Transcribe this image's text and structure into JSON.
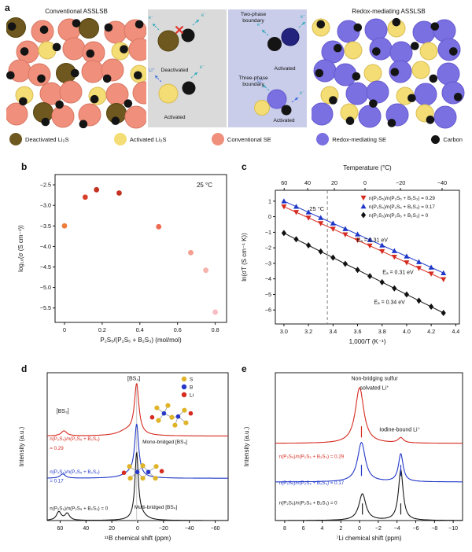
{
  "panels": {
    "a": {
      "label": "a",
      "left_title": "Conventional ASSLSB",
      "right_title": "Redox-mediating ASSLSB",
      "two_phase_label": "Two-phase boundary",
      "three_phase_label": "Three-phase boundary",
      "captions": {
        "deactivated": "Deactivated",
        "activated_grey": "Activated",
        "activated_blue_top": "Activated",
        "activated_blue_bottom": "Activated"
      },
      "micro_labels": {
        "electron": "e⁻",
        "lithium": "Li⁺"
      },
      "colors": {
        "S": "#f0907c",
        "S_stroke": "#d87864",
        "B": "#6e581f",
        "B_stroke": "#55430f",
        "Y": "#f3dd74",
        "Y_stroke": "#d9bd55",
        "P": "#7b70e2",
        "P_stroke": "#655ad0",
        "carbon": "#141414",
        "navy": "#23237e",
        "grey_box": "#dadada",
        "blue_box": "#c9cde9",
        "teal_arrow": "#2fa8bc",
        "blue_arrow": "#3b6ce0",
        "red_x": "#e23028"
      },
      "left_pattern": [
        "BSSBSS",
        "SYSSYS",
        "SSBSSY",
        "YSSYSS",
        "SBSSBS"
      ],
      "right_pattern": [
        "YPPYPP",
        "PYPPYP",
        "PPYPYP",
        "YPPYPP",
        "PYPPYP"
      ],
      "left_dots": [
        [
          0.04,
          0.07
        ],
        [
          0.27,
          0.1
        ],
        [
          0.5,
          0.04
        ],
        [
          0.73,
          0.08
        ],
        [
          0.95,
          0.05
        ],
        [
          0.13,
          0.3
        ],
        [
          0.36,
          0.26
        ],
        [
          0.6,
          0.32
        ],
        [
          0.84,
          0.28
        ],
        [
          0.03,
          0.52
        ],
        [
          0.25,
          0.55
        ],
        [
          0.49,
          0.5
        ],
        [
          0.72,
          0.55
        ],
        [
          0.94,
          0.52
        ],
        [
          0.12,
          0.76
        ],
        [
          0.38,
          0.79
        ],
        [
          0.63,
          0.74
        ],
        [
          0.87,
          0.78
        ],
        [
          0.28,
          0.95
        ],
        [
          0.55,
          0.97
        ],
        [
          0.78,
          0.94
        ]
      ],
      "right_dots": [
        [
          0.06,
          0.05
        ],
        [
          0.3,
          0.08
        ],
        [
          0.55,
          0.03
        ],
        [
          0.8,
          0.07
        ],
        [
          0.17,
          0.27
        ],
        [
          0.42,
          0.3
        ],
        [
          0.67,
          0.25
        ],
        [
          0.92,
          0.3
        ],
        [
          0.05,
          0.5
        ],
        [
          0.29,
          0.53
        ],
        [
          0.54,
          0.49
        ],
        [
          0.79,
          0.55
        ],
        [
          0.95,
          0.72
        ],
        [
          0.14,
          0.75
        ],
        [
          0.4,
          0.78
        ],
        [
          0.65,
          0.73
        ],
        [
          0.25,
          0.94
        ],
        [
          0.52,
          0.96
        ],
        [
          0.77,
          0.93
        ]
      ],
      "legend": [
        {
          "label": "Deactivated Li₂S",
          "color": "#6e581f",
          "size": 16
        },
        {
          "label": "Activated Li₂S",
          "color": "#f3dd74",
          "size": 16
        },
        {
          "label": "Conventional SE",
          "color": "#f0907c",
          "size": 16
        },
        {
          "label": "Redox-mediating SE",
          "color": "#7b70e2",
          "size": 16
        },
        {
          "label": "Carbon",
          "color": "#141414",
          "size": 11
        }
      ]
    },
    "b": {
      "label": "b"
    },
    "c": {
      "label": "c"
    },
    "d": {
      "label": "d"
    },
    "e": {
      "label": "e"
    }
  },
  "chart_data": [
    {
      "id": "b",
      "type": "scatter",
      "annotation": "25 °C",
      "xlabel": "P₂S₅/(P₂S₅ + B₂S₃) (mol/mol)",
      "ylabel": "log₁₀(σ (S cm⁻¹))",
      "xlim": [
        -0.05,
        0.86
      ],
      "ylim": [
        -5.85,
        -2.25
      ],
      "xticks": [
        0,
        0.2,
        0.4,
        0.6,
        0.8
      ],
      "xtick_labels": [
        "0",
        "0.2",
        "0.4",
        "0.6",
        "0.8"
      ],
      "yticks": [
        -2.5,
        -3.0,
        -3.5,
        -4.0,
        -4.5,
        -5.0,
        -5.5
      ],
      "ytick_labels": [
        "−2.5",
        "−3.0",
        "−3.5",
        "−4.0",
        "−4.5",
        "−5.0",
        "−5.5"
      ],
      "points": [
        {
          "x": 0.0,
          "y": -3.5,
          "color": "#ef7d3a"
        },
        {
          "x": 0.11,
          "y": -2.8,
          "color": "#d8402a"
        },
        {
          "x": 0.17,
          "y": -2.62,
          "color": "#c43222"
        },
        {
          "x": 0.29,
          "y": -2.7,
          "color": "#c43222"
        },
        {
          "x": 0.5,
          "y": -3.52,
          "color": "#ee6a50"
        },
        {
          "x": 0.67,
          "y": -4.15,
          "color": "#f49d90"
        },
        {
          "x": 0.75,
          "y": -4.58,
          "color": "#f6b3ab"
        },
        {
          "x": 0.8,
          "y": -5.6,
          "color": "#f7bcc4"
        }
      ]
    },
    {
      "id": "c",
      "type": "line",
      "xlabel": "1,000/T (K⁻¹)",
      "ylabel": "ln(σT (S cm⁻¹ K))",
      "top_xlabel": "Temperature (°C)",
      "xlim": [
        2.93,
        4.43
      ],
      "ylim": [
        -6.9,
        1.7
      ],
      "xticks": [
        3.0,
        3.2,
        3.4,
        3.6,
        3.8,
        4.0,
        4.2,
        4.4
      ],
      "xtick_labels": [
        "3.0",
        "3.2",
        "3.4",
        "3.6",
        "3.8",
        "4.0",
        "4.2",
        "4.4"
      ],
      "yticks": [
        1,
        0,
        -1,
        -2,
        -3,
        -4,
        -5,
        -6
      ],
      "ytick_labels": [
        "1",
        "0",
        "−1",
        "−2",
        "−3",
        "−4",
        "−5",
        "−6"
      ],
      "top_ticks": [
        {
          "label": "60",
          "x": 3.002
        },
        {
          "label": "40",
          "x": 3.193
        },
        {
          "label": "20",
          "x": 3.411
        },
        {
          "label": "0",
          "x": 3.661
        },
        {
          "label": "−20",
          "x": 3.95
        },
        {
          "label": "−40",
          "x": 4.289
        }
      ],
      "vline": {
        "x": 3.354,
        "label": "25 °C"
      },
      "x": [
        3.0,
        3.1,
        3.2,
        3.3,
        3.4,
        3.5,
        3.6,
        3.7,
        3.8,
        3.9,
        4.0,
        4.1,
        4.2,
        4.3
      ],
      "series": [
        {
          "name": "n(P₂S₅)/n(P₂S₅ + B₂S₃) = 0.29",
          "color": "#d62b20",
          "marker": "triangle-down",
          "y": [
            0.65,
            0.29,
            -0.07,
            -0.43,
            -0.79,
            -1.15,
            -1.51,
            -1.87,
            -2.23,
            -2.59,
            -2.95,
            -3.31,
            -3.67,
            -4.03
          ]
        },
        {
          "name": "n(P₂S₅)/n(P₂S₅ + B₂S₃) = 0.17",
          "color": "#2038c8",
          "marker": "triangle-up",
          "y": [
            1.0,
            0.65,
            0.29,
            -0.07,
            -0.42,
            -0.78,
            -1.13,
            -1.49,
            -1.84,
            -2.2,
            -2.55,
            -2.91,
            -3.26,
            -3.62
          ]
        },
        {
          "name": "n(P₂S₅)/n(P₂S₅ + B₂S₃) = 0",
          "color": "#111111",
          "marker": "diamond",
          "y": [
            -1.05,
            -1.45,
            -1.84,
            -2.24,
            -2.63,
            -3.03,
            -3.42,
            -3.82,
            -4.21,
            -4.61,
            -5.0,
            -5.4,
            -5.79,
            -6.19
          ]
        }
      ],
      "ea_labels": [
        {
          "text": "Eₐ = 0.31 eV",
          "x": 3.72,
          "y": -1.62
        },
        {
          "text": "Eₐ = 0.31 eV",
          "x": 3.93,
          "y": -3.68
        },
        {
          "text": "Eₐ = 0.34 eV",
          "x": 3.86,
          "y": -5.62
        }
      ]
    },
    {
      "id": "d",
      "type": "nmr",
      "xlabel": "¹¹B chemical shift (ppm)",
      "ylabel": "Intensity (a.u.)",
      "xlim": [
        70,
        -70
      ],
      "xticks": [
        60,
        40,
        20,
        0,
        -20,
        -40,
        -60
      ],
      "xtick_labels": [
        "60",
        "40",
        "20",
        "0",
        "−20",
        "−40",
        "−60"
      ],
      "ymax": 3.5,
      "vline": {
        "x": 0.8,
        "y_top": 3.2
      },
      "traces": [
        {
          "name": "n(P₂S₅)/n(P₂S₅ + B₂S₃) = 0",
          "color": "#1a1a1a",
          "offset": 0,
          "peaks": [
            {
              "c": 61,
              "w": 2.2,
              "h": 0.2
            },
            {
              "c": 54.5,
              "w": 2.2,
              "h": 0.16
            },
            {
              "c": 0.8,
              "w": 1.6,
              "h": 1.55
            },
            {
              "c": -3,
              "w": 5,
              "h": 0.1
            }
          ],
          "label_lines": [
            "n(P₂S₅)/n(P₂S₅ + B₂S₃) = 0"
          ],
          "label_x": 68,
          "label_y": [
            0.25
          ]
        },
        {
          "name": "n(P₂S₅)/n(P₂S₅ + B₂S₃) = 0.17",
          "color": "#2038c8",
          "offset": 1.0,
          "peaks": [
            {
              "c": 58,
              "w": 2.5,
              "h": 0.1
            },
            {
              "c": 6,
              "w": 7,
              "h": 0.1
            },
            {
              "c": 0.8,
              "w": 1.9,
              "h": 1.22
            }
          ],
          "label_lines": [
            "n(P₂S₅)/n(P₂S₅ + B₂S₃)",
            "= 0.17"
          ],
          "label_x": 68,
          "label_y": [
            1.12,
            0.9
          ]
        },
        {
          "name": "n(P₂S₅)/n(P₂S₅ + B₂S₃) = 0.29",
          "color": "#d62b20",
          "offset": 2.0,
          "peaks": [
            {
              "c": 57,
              "w": 2.6,
              "h": 0.12
            },
            {
              "c": 8,
              "w": 8,
              "h": 0.12
            },
            {
              "c": 0.8,
              "w": 2.1,
              "h": 1.18
            }
          ],
          "label_lines": [
            "n(P₂S₅)/n(P₂S₅ + B₂S₃)",
            "= 0.29"
          ],
          "label_x": 68,
          "label_y": [
            1.9,
            1.68
          ]
        }
      ],
      "annotations": [
        {
          "text": "[BS₃]",
          "x": 58,
          "y": 2.55,
          "fs": 7
        },
        {
          "text": "[BS₄]",
          "x": 3,
          "y": 3.32,
          "fs": 7
        },
        {
          "text": "Mono-bridged [BS₄]",
          "x": -21,
          "y": 1.82,
          "fs": 6.5
        },
        {
          "text": "Multi-bridged [BS₄]",
          "x": -14,
          "y": 0.28,
          "fs": 6.5
        }
      ],
      "atom_legend": [
        {
          "label": "S",
          "color": "#e0b428"
        },
        {
          "label": "B",
          "color": "#2838c8"
        },
        {
          "label": "Li",
          "color": "#d62b20"
        }
      ],
      "molecules": [
        {
          "kind": "mono",
          "x": -24,
          "y": 2.5
        },
        {
          "kind": "multi",
          "x": -4,
          "y": 1.15
        }
      ]
    },
    {
      "id": "e",
      "type": "nmr",
      "xlabel": "⁷Li chemical shift (ppm)",
      "ylabel": "Intensity (a.u.)",
      "xlim": [
        9,
        -11
      ],
      "xticks": [
        8,
        6,
        4,
        2,
        0,
        -2,
        -4,
        -6,
        -8,
        -10
      ],
      "xtick_labels": [
        "8",
        "6",
        "4",
        "2",
        "0",
        "−2",
        "−4",
        "−6",
        "−8",
        "−10"
      ],
      "ymax": 3.45,
      "traces": [
        {
          "name": "n(P₂S₅)/n(P₂S₅ + B₂S₃) = 0",
          "color": "#1a1a1a",
          "offset": 0,
          "peaks": [
            {
              "c": -0.3,
              "w": 0.45,
              "h": 0.62
            },
            {
              "c": -4.4,
              "w": 0.3,
              "h": 1.18
            }
          ],
          "label_lines": [
            "n(P₂S₅)/n(P₂S₅ + B₂S₃) = 0"
          ],
          "label_x": 8.6,
          "label_y": [
            0.38
          ]
        },
        {
          "name": "n(P₂S₅)/n(P₂S₅ + B₂S₃) = 0.17",
          "color": "#2038c8",
          "offset": 0.9,
          "peaks": [
            {
              "c": -0.2,
              "w": 0.5,
              "h": 0.92
            },
            {
              "c": -4.4,
              "w": 0.3,
              "h": 0.65
            }
          ],
          "label_lines": [
            "n(P₂S₅)/n(P₂S₅ + B₂S₃) = 0.17"
          ],
          "label_x": 8.6,
          "label_y": [
            0.84
          ]
        },
        {
          "name": "n(P₂S₅)/n(P₂S₅ + B₂S₃) = 0.29",
          "color": "#d62b20",
          "offset": 1.8,
          "peaks": [
            {
              "c": 0,
              "w": 0.55,
              "h": 1.3
            },
            {
              "c": -4.4,
              "w": 0.35,
              "h": 0.12
            }
          ],
          "label_lines": [
            "n(P₂S₅)/n(P₂S₅ + B₂S₃) = 0.29"
          ],
          "label_x": 8.6,
          "label_y": [
            1.46
          ]
        }
      ],
      "marks": [
        {
          "x": -0.2,
          "t": 2
        },
        {
          "x": -0.2,
          "t": 1
        },
        {
          "x": -0.3,
          "t": 0
        },
        {
          "x": -4.4,
          "t": 1
        },
        {
          "x": -4.4,
          "t": 0
        }
      ],
      "annotations": [
        {
          "text": "Non-bridging sulfur",
          "x": -1.6,
          "y": 3.28,
          "fs": 7
        },
        {
          "text": "solvated Li⁺",
          "x": -1.6,
          "y": 3.06,
          "fs": 7
        },
        {
          "text": "Iodine-bound Li⁺",
          "x": -4.3,
          "y": 2.08,
          "fs": 7
        }
      ]
    }
  ]
}
